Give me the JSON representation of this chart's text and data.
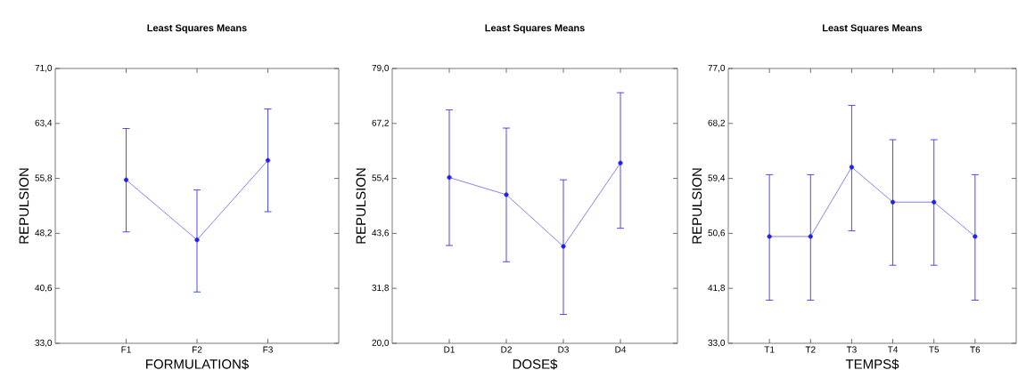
{
  "chart_data": [
    {
      "type": "line",
      "title": "Least Squares Means",
      "xlabel": "FORMULATION$",
      "ylabel": "REPULSION",
      "categories": [
        "F1",
        "F2",
        "F3"
      ],
      "values": [
        55.6,
        47.3,
        58.3
      ],
      "errors": [
        [
          48.4,
          62.7
        ],
        [
          40.1,
          54.2
        ],
        [
          51.2,
          65.4
        ]
      ],
      "color": "#2020f0",
      "marker": "circle",
      "line_style": "solid",
      "grid": false,
      "ylim": [
        33.0,
        71.0
      ],
      "yticks": [
        {
          "value": 33.0,
          "label": "33,0"
        },
        {
          "value": 40.6,
          "label": "40,6"
        },
        {
          "value": 48.2,
          "label": "48,2"
        },
        {
          "value": 55.8,
          "label": "55,8"
        },
        {
          "value": 63.4,
          "label": "63,4"
        },
        {
          "value": 71.0,
          "label": "71,0"
        }
      ]
    },
    {
      "type": "line",
      "title": "Least Squares Means",
      "xlabel": "DOSE$",
      "ylabel": "REPULSION",
      "categories": [
        "D1",
        "D2",
        "D3",
        "D4"
      ],
      "values": [
        55.6,
        51.9,
        40.8,
        58.7
      ],
      "errors": [
        [
          41.0,
          70.1
        ],
        [
          37.5,
          66.2
        ],
        [
          26.2,
          55.1
        ],
        [
          44.7,
          73.8
        ]
      ],
      "color": "#2020f0",
      "marker": "circle",
      "line_style": "solid",
      "grid": false,
      "ylim": [
        20.0,
        79.0
      ],
      "yticks": [
        {
          "value": 20.0,
          "label": "20,0"
        },
        {
          "value": 31.8,
          "label": "31,8"
        },
        {
          "value": 43.6,
          "label": "43,6"
        },
        {
          "value": 55.4,
          "label": "55,4"
        },
        {
          "value": 67.2,
          "label": "67,2"
        },
        {
          "value": 79.0,
          "label": "79,0"
        }
      ]
    },
    {
      "type": "line",
      "title": "Least Squares Means",
      "xlabel": "TEMPS$",
      "ylabel": "REPULSION",
      "categories": [
        "T1",
        "T2",
        "T3",
        "T4",
        "T5",
        "T6"
      ],
      "values": [
        50.1,
        50.1,
        61.2,
        55.6,
        55.6,
        50.1
      ],
      "errors": [
        [
          39.9,
          60.0
        ],
        [
          39.9,
          60.0
        ],
        [
          51.0,
          71.1
        ],
        [
          45.5,
          65.6
        ],
        [
          45.5,
          65.6
        ],
        [
          39.9,
          60.0
        ]
      ],
      "color": "#2020f0",
      "marker": "circle",
      "line_style": "solid",
      "grid": false,
      "ylim": [
        33.0,
        77.0
      ],
      "yticks": [
        {
          "value": 33.0,
          "label": "33,0"
        },
        {
          "value": 41.8,
          "label": "41,8"
        },
        {
          "value": 50.6,
          "label": "50,6"
        },
        {
          "value": 59.4,
          "label": "59,4"
        },
        {
          "value": 68.2,
          "label": "68,2"
        },
        {
          "value": 77.0,
          "label": "77,0"
        }
      ]
    }
  ]
}
